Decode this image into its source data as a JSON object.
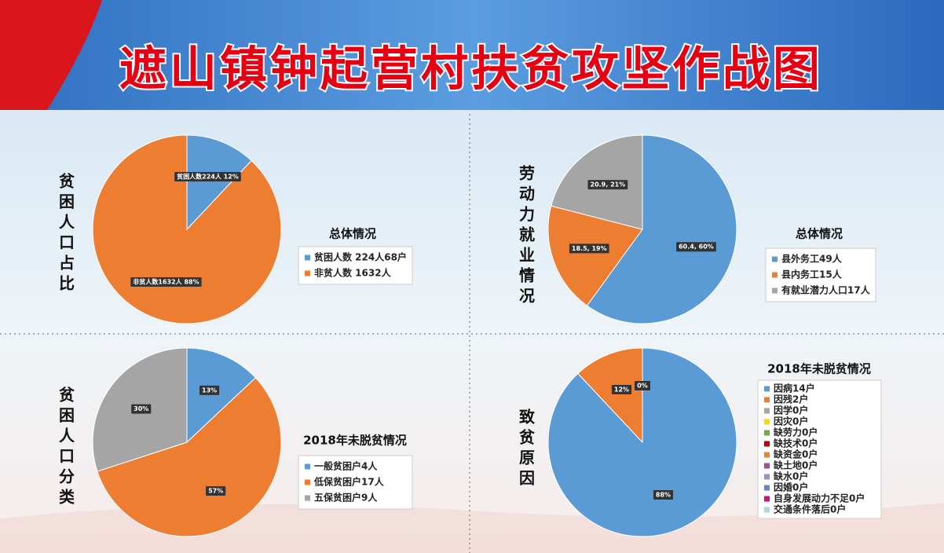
{
  "title": "遮山镇钟起营村扶贫攻坚作战图",
  "chart_data": [
    {
      "type": "pie",
      "side_title": "贫困人口占比",
      "title": "总体情况",
      "categories": [
        "贫困人数 224人68户",
        "非贫人数 1632人"
      ],
      "values": [
        12,
        88
      ],
      "value_labels": [
        "贫困人数224人 12%",
        "非贫人数1632人 88%"
      ],
      "colors": [
        "#5b9bd5",
        "#ed7d31"
      ]
    },
    {
      "type": "pie",
      "side_title": "劳动力就业情况",
      "title": "总体情况",
      "categories": [
        "县外务工49人",
        "县内务工15人",
        "有就业潜力人口17人"
      ],
      "values": [
        60,
        19,
        21
      ],
      "value_labels": [
        "60.4, 60%",
        "18.5, 19%",
        "20.9, 21%"
      ],
      "colors": [
        "#5b9bd5",
        "#ed7d31",
        "#a5a5a5"
      ]
    },
    {
      "type": "pie",
      "side_title": "贫困人口分类",
      "title": "2018年未脱贫情况",
      "categories": [
        "一般贫困户4人",
        "低保贫困户17人",
        "五保贫困户9人"
      ],
      "values": [
        13,
        57,
        30
      ],
      "value_labels": [
        "13%",
        "57%",
        "30%"
      ],
      "colors": [
        "#5b9bd5",
        "#ed7d31",
        "#a5a5a5"
      ]
    },
    {
      "type": "pie",
      "side_title": "致贫原因",
      "title": "2018年未脱贫情况",
      "categories": [
        "因病14户",
        "因残2户",
        "因学0户",
        "因灾0户",
        "缺劳力0户",
        "缺技术0户",
        "缺资金0户",
        "缺土地0户",
        "缺水0户",
        "因婚0户",
        "自身发展动力不足0户",
        "交通条件落后0户"
      ],
      "values": [
        88,
        12,
        0,
        0,
        0,
        0,
        0,
        0,
        0,
        0,
        0,
        0
      ],
      "value_labels": [
        "88%",
        "12%",
        "0%",
        "0%",
        "0%",
        "0%",
        "0%",
        "0%",
        "0%",
        "0%",
        "0%",
        "0%"
      ],
      "colors": [
        "#5b9bd5",
        "#ed7d31",
        "#a5a5a5",
        "#ffd700",
        "#70ad47",
        "#c00000",
        "#e6862e",
        "#a05090",
        "#9e8fc9",
        "#6f7fc4",
        "#d0107a",
        "#a9d6ea"
      ]
    }
  ]
}
